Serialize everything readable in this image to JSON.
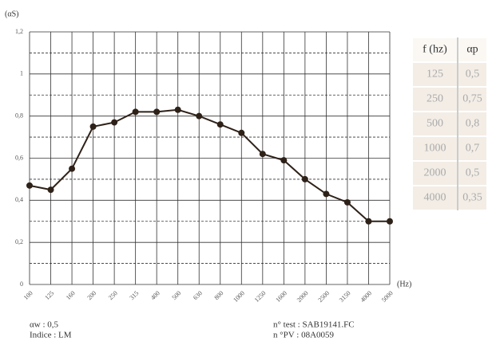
{
  "chart_data": {
    "type": "line",
    "y_label": "(αS)",
    "x_label": "(Hz)",
    "categories": [
      "100",
      "125",
      "160",
      "200",
      "250",
      "315",
      "400",
      "500",
      "630",
      "800",
      "1000",
      "1250",
      "1600",
      "2000",
      "2500",
      "3150",
      "4000",
      "5000"
    ],
    "series": [
      {
        "color": "#2e2118",
        "values": [
          0.47,
          0.45,
          0.55,
          0.75,
          0.77,
          0.82,
          0.82,
          0.83,
          0.8,
          0.76,
          0.72,
          0.62,
          0.59,
          0.5,
          0.43,
          0.39,
          0.3,
          0.3
        ]
      }
    ],
    "ylim": [
      0,
      1.2
    ],
    "yticks": [
      0,
      {
        "value": 0.2,
        "label": "0,2"
      },
      {
        "value": 0.4,
        "label": "0,4"
      },
      {
        "value": 0.6,
        "label": "0,6"
      },
      {
        "value": 0.8,
        "label": "0,8"
      },
      1,
      {
        "value": 1.2,
        "label": "1,2"
      }
    ],
    "minor_yticks": [
      0.1,
      0.3,
      0.5,
      0.7,
      0.9,
      1.1
    ],
    "grid": true
  },
  "table": {
    "header": [
      "f (hz)",
      "αp"
    ],
    "rows": [
      [
        "125",
        "0,5"
      ],
      [
        "250",
        "0,75"
      ],
      [
        "500",
        "0,8"
      ],
      [
        "1000",
        "0,7"
      ],
      [
        "2000",
        "0,5"
      ],
      [
        "4000",
        "0,35"
      ]
    ]
  },
  "footer": {
    "left": [
      "αw : 0,5",
      "Indice : LM"
    ],
    "right": [
      "n° test : SAB19141.FC",
      "n °PV : 08A0059"
    ]
  }
}
